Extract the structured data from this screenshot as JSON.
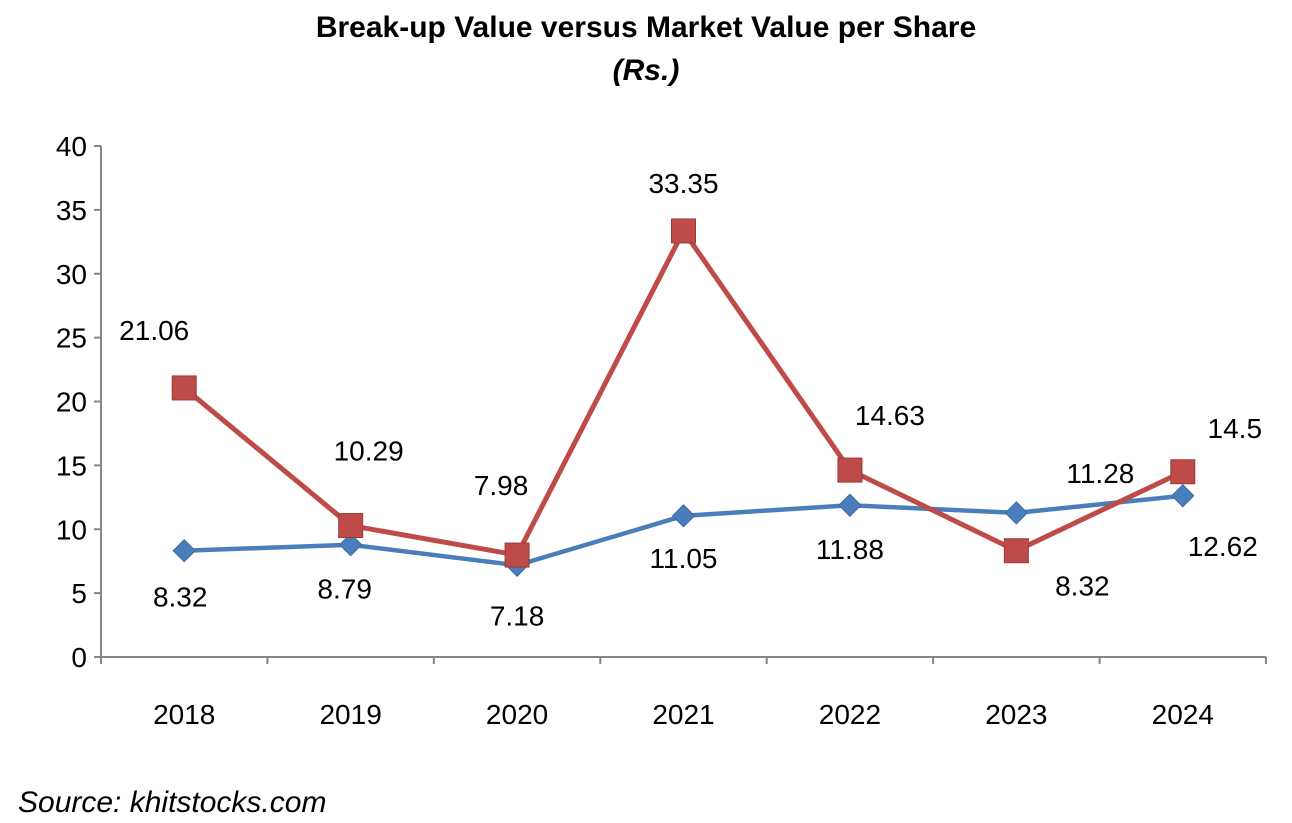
{
  "chart_data": {
    "type": "line",
    "title": "Break-up Value versus Market Value per Share",
    "subtitle": "(Rs.)",
    "xlabel": "",
    "ylabel": "",
    "categories": [
      "2018",
      "2019",
      "2020",
      "2021",
      "2022",
      "2023",
      "2024"
    ],
    "ylim": [
      0,
      40
    ],
    "yticks": [
      "0",
      "5",
      "10",
      "15",
      "20",
      "25",
      "30",
      "35",
      "40"
    ],
    "grid": false,
    "legend": "none",
    "series": [
      {
        "marker": "diamond",
        "color": "#4a7ebb",
        "values": [
          8.32,
          8.79,
          7.18,
          11.05,
          11.88,
          11.28,
          12.62
        ],
        "labels": [
          "8.32",
          "8.79",
          "7.18",
          "11.05",
          "11.88",
          "11.28",
          "12.62"
        ]
      },
      {
        "marker": "square",
        "color": "#be4b48",
        "values": [
          21.06,
          10.29,
          7.98,
          33.35,
          14.63,
          8.32,
          14.5
        ],
        "labels": [
          "21.06",
          "10.29",
          "7.98",
          "33.35",
          "14.63",
          "8.32",
          "14.5"
        ]
      }
    ]
  },
  "source": "Source: khitstocks.com"
}
